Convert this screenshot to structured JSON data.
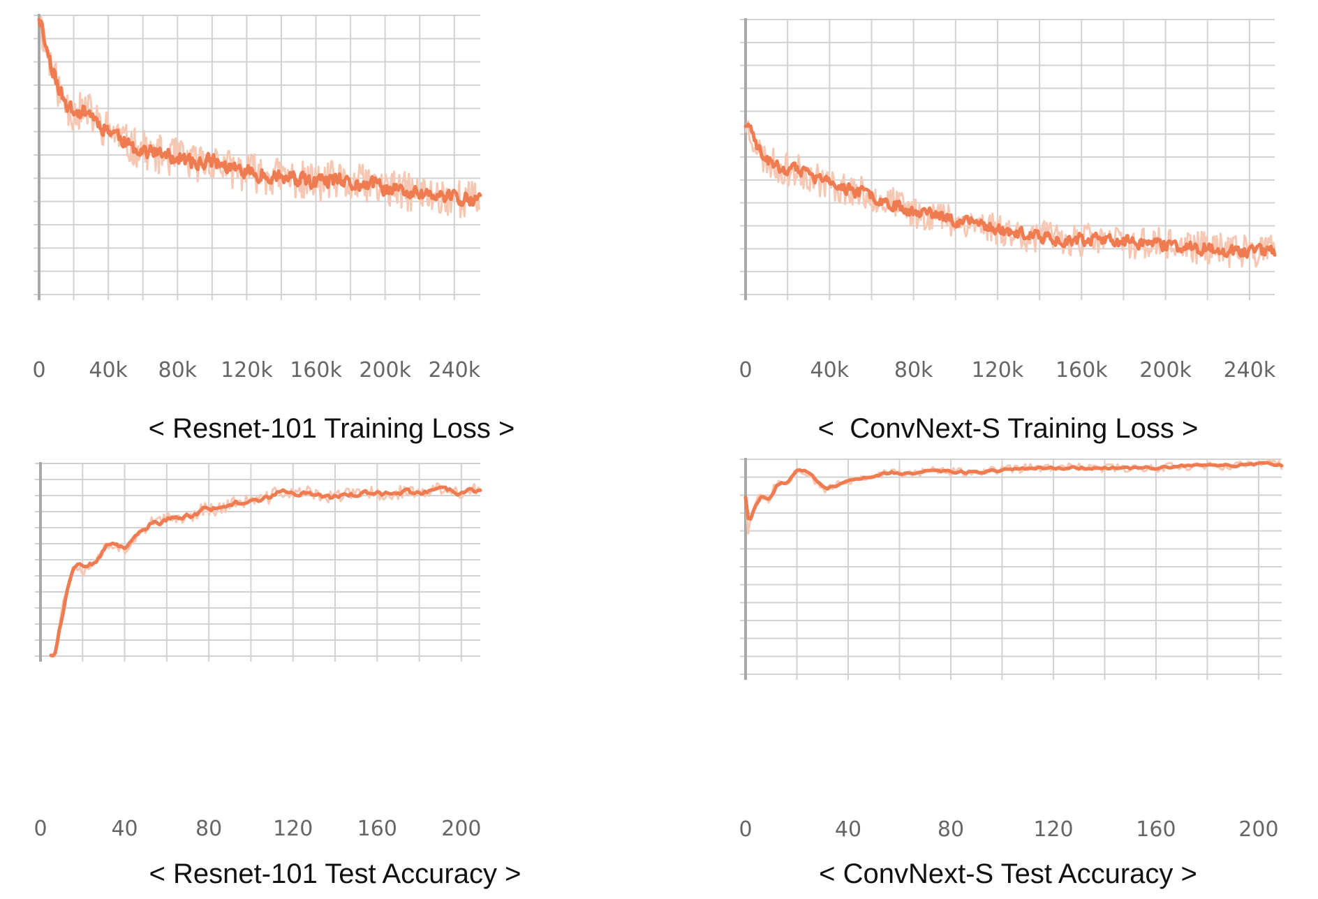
{
  "colors": {
    "line": "#ef7b50",
    "raw": "#f6c8b4",
    "grid": "#d2d2d2",
    "axis": "#a8a8a8"
  },
  "chart_data": [
    {
      "type": "line",
      "title": "< Resnet-101 Training Loss >",
      "x_ticks": [
        0,
        40000,
        80000,
        120000,
        160000,
        200000,
        240000
      ],
      "x_tick_labels": [
        "0",
        "40k",
        "80k",
        "120k",
        "160k",
        "200k",
        "240k"
      ],
      "xlim": [
        0,
        255000
      ],
      "ylim": [
        0,
        1
      ],
      "y_tick_labels": [],
      "series": [
        {
          "role": "smoothed",
          "x": [
            0,
            4000,
            8000,
            12000,
            16000,
            20000,
            28000,
            36000,
            44000,
            52000,
            60000,
            70000,
            80000,
            90000,
            100000,
            110000,
            120000,
            130000,
            140000,
            150000,
            160000,
            170000,
            180000,
            190000,
            200000,
            210000,
            220000,
            230000,
            240000,
            250000,
            255000
          ],
          "y": [
            1.0,
            0.88,
            0.8,
            0.72,
            0.68,
            0.65,
            0.66,
            0.6,
            0.58,
            0.53,
            0.52,
            0.5,
            0.49,
            0.47,
            0.48,
            0.45,
            0.44,
            0.43,
            0.42,
            0.41,
            0.4,
            0.41,
            0.39,
            0.4,
            0.38,
            0.37,
            0.36,
            0.35,
            0.35,
            0.34,
            0.33
          ]
        }
      ],
      "noise": 0.035,
      "raw_noise": 0.07,
      "points": 420,
      "seed": 11
    },
    {
      "type": "line",
      "title": "<  ConvNext-S Training Loss >",
      "x_ticks": [
        0,
        40000,
        80000,
        120000,
        160000,
        200000,
        240000
      ],
      "x_tick_labels": [
        "0",
        "40k",
        "80k",
        "120k",
        "160k",
        "200k",
        "240k"
      ],
      "xlim": [
        0,
        252000
      ],
      "ylim": [
        0,
        1
      ],
      "y_tick_labels": [],
      "series": [
        {
          "role": "smoothed",
          "x": [
            0,
            3000,
            8000,
            16000,
            24000,
            32000,
            40000,
            50000,
            60000,
            70000,
            80000,
            90000,
            100000,
            110000,
            120000,
            130000,
            140000,
            150000,
            160000,
            170000,
            180000,
            190000,
            200000,
            210000,
            220000,
            230000,
            240000,
            250000,
            252000
          ],
          "y": [
            0.62,
            0.58,
            0.5,
            0.46,
            0.45,
            0.43,
            0.4,
            0.38,
            0.36,
            0.33,
            0.3,
            0.29,
            0.27,
            0.26,
            0.24,
            0.22,
            0.21,
            0.2,
            0.2,
            0.2,
            0.19,
            0.19,
            0.18,
            0.17,
            0.17,
            0.16,
            0.16,
            0.16,
            0.15
          ]
        }
      ],
      "noise": 0.03,
      "raw_noise": 0.06,
      "points": 420,
      "seed": 23
    },
    {
      "type": "line",
      "title": "< Resnet-101 Test Accuracy >",
      "x_ticks": [
        0,
        40,
        80,
        120,
        160,
        200
      ],
      "x_tick_labels": [
        "0",
        "40",
        "80",
        "120",
        "160",
        "200"
      ],
      "xlim": [
        0,
        209
      ],
      "ylim": [
        0,
        1
      ],
      "y_tick_labels": [],
      "series": [
        {
          "role": "smoothed",
          "x": [
            5,
            7,
            9,
            12,
            15,
            18,
            21,
            25,
            28,
            31,
            35,
            38,
            40,
            44,
            48,
            52,
            56,
            60,
            66,
            72,
            78,
            84,
            90,
            96,
            102,
            108,
            114,
            120,
            126,
            132,
            138,
            144,
            150,
            156,
            162,
            168,
            174,
            180,
            186,
            192,
            198,
            204,
            209
          ],
          "y": [
            0.0,
            0.03,
            0.17,
            0.33,
            0.46,
            0.47,
            0.45,
            0.49,
            0.51,
            0.58,
            0.59,
            0.56,
            0.54,
            0.62,
            0.65,
            0.69,
            0.69,
            0.71,
            0.72,
            0.73,
            0.77,
            0.76,
            0.79,
            0.8,
            0.81,
            0.82,
            0.86,
            0.84,
            0.85,
            0.84,
            0.82,
            0.84,
            0.84,
            0.85,
            0.84,
            0.84,
            0.86,
            0.84,
            0.86,
            0.87,
            0.84,
            0.86,
            0.86
          ]
        }
      ],
      "noise": 0.015,
      "raw_noise": 0.035,
      "points": 209,
      "seed": 37
    },
    {
      "type": "line",
      "title": "< ConvNext-S Test Accuracy >",
      "x_ticks": [
        0,
        40,
        80,
        120,
        160,
        200
      ],
      "x_tick_labels": [
        "0",
        "40",
        "80",
        "120",
        "160",
        "200"
      ],
      "xlim": [
        0,
        209
      ],
      "ylim": [
        0,
        1
      ],
      "y_tick_labels": [],
      "series": [
        {
          "role": "smoothed",
          "x": [
            0,
            1,
            3,
            6,
            9,
            12,
            16,
            20,
            24,
            28,
            31,
            33,
            36,
            40,
            48,
            56,
            64,
            72,
            80,
            90,
            100,
            110,
            120,
            130,
            140,
            150,
            160,
            170,
            180,
            190,
            200,
            205,
            209
          ],
          "y": [
            0.83,
            0.67,
            0.78,
            0.84,
            0.81,
            0.89,
            0.89,
            0.96,
            0.94,
            0.89,
            0.86,
            0.87,
            0.88,
            0.9,
            0.92,
            0.94,
            0.93,
            0.95,
            0.94,
            0.94,
            0.95,
            0.96,
            0.96,
            0.96,
            0.96,
            0.96,
            0.96,
            0.97,
            0.97,
            0.97,
            0.98,
            0.98,
            0.97
          ]
        }
      ],
      "noise": 0.008,
      "raw_noise": 0.02,
      "points": 209,
      "seed": 53
    }
  ]
}
